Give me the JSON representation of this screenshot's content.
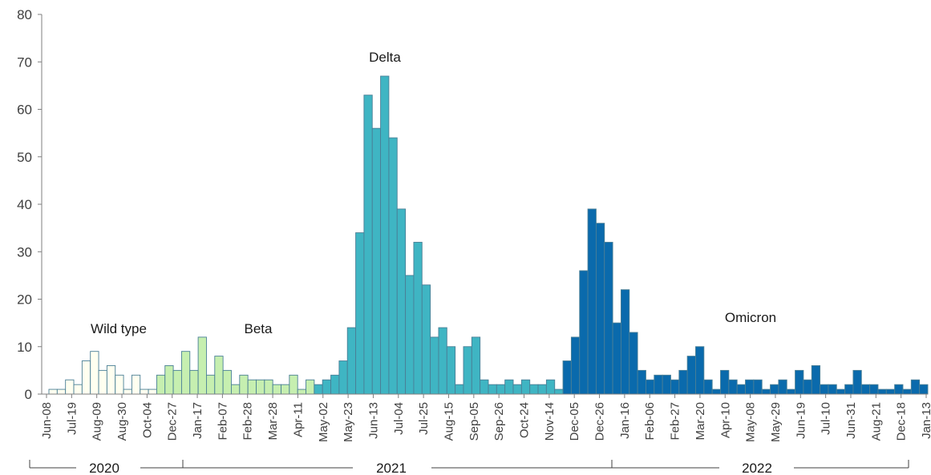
{
  "chart_data": {
    "type": "bar",
    "title": "",
    "xlabel": "",
    "ylabel": "",
    "ylim": [
      0,
      80
    ],
    "yticks": [
      0,
      10,
      20,
      30,
      40,
      50,
      60,
      70,
      80
    ],
    "grid": false,
    "legend": "none",
    "tick_labels": [
      "Jun-08",
      "Jul-19",
      "Aug-09",
      "Aug-30",
      "Oct-04",
      "Dec-27",
      "Jan-17",
      "Feb-07",
      "Feb-28",
      "Mar-28",
      "Apr-11",
      "May-02",
      "May-23",
      "Jun-13",
      "Jul-04",
      "Jul-25",
      "Aug-15",
      "Sep-05",
      "Sep-26",
      "Oct-24",
      "Nov-14",
      "Dec-05",
      "Dec-26",
      "Jan-16",
      "Feb-06",
      "Feb-27",
      "Mar-20",
      "Apr-10",
      "May-08",
      "May-29",
      "Jun-19",
      "Jul-10",
      "Jun-31",
      "Aug-21",
      "Dec-18",
      "Jan-13"
    ],
    "series": [
      {
        "name": "Wild type",
        "color": "#fffff0",
        "values": [
          1,
          1,
          3,
          2,
          7,
          9,
          5,
          6,
          4,
          1,
          4,
          1,
          1
        ]
      },
      {
        "name": "Beta",
        "color": "#c6efb0",
        "values": [
          4,
          6,
          5,
          9,
          5,
          12,
          4,
          8,
          5,
          2,
          4,
          3,
          3,
          3,
          2,
          2,
          4,
          1,
          3
        ]
      },
      {
        "name": "Delta",
        "color": "#3fb5c3",
        "values": [
          2,
          3,
          4,
          7,
          14,
          34,
          63,
          56,
          67,
          54,
          39,
          25,
          32,
          23,
          12,
          14,
          10,
          2,
          10,
          12,
          3,
          2,
          2,
          3,
          2,
          3,
          2,
          2,
          3,
          1
        ]
      },
      {
        "name": "Omicron",
        "color": "#0a6aac",
        "values": [
          7,
          12,
          26,
          39,
          36,
          32,
          15,
          22,
          13,
          5,
          3,
          4,
          4,
          3,
          5,
          8,
          10,
          3,
          1,
          5,
          3,
          2,
          3,
          3,
          1,
          2,
          3,
          1,
          5,
          3,
          6,
          2,
          2,
          1,
          2,
          5,
          2,
          2,
          1,
          1,
          2,
          1,
          3,
          2
        ]
      }
    ],
    "annotations": [
      "Wild type",
      "Beta",
      "Delta",
      "Omicron"
    ],
    "years": [
      "2020",
      "2021",
      "2022"
    ]
  }
}
